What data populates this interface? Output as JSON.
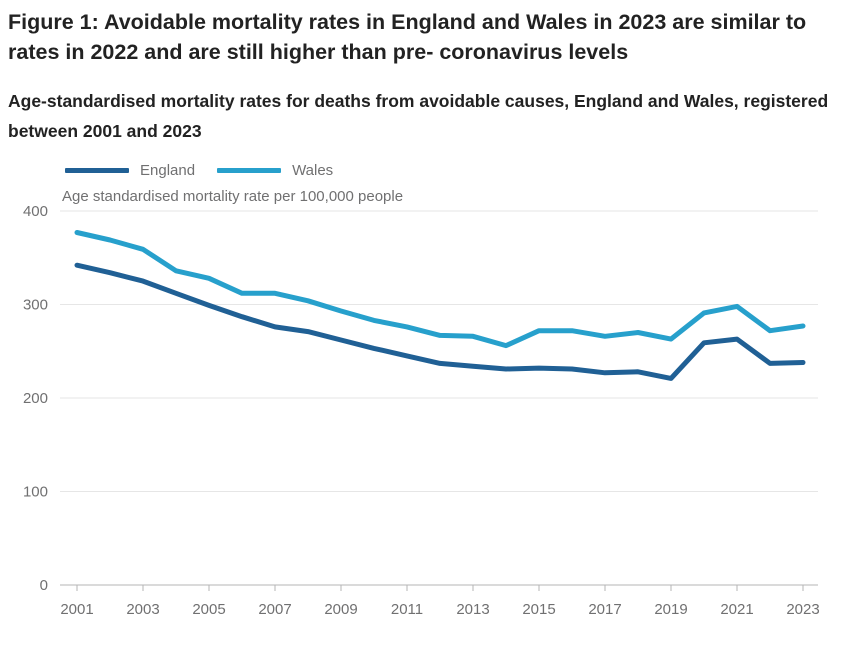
{
  "header": {
    "title": "Figure 1: Avoidable mortality rates in England and Wales in 2023 are similar to rates in 2022 and are still higher than pre- coronavirus levels",
    "subtitle": "Age-standardised mortality rates for deaths from avoidable causes, England and Wales, registered between 2001 and 2023"
  },
  "legend": {
    "items": [
      {
        "label": "England",
        "color": "#206095"
      },
      {
        "label": "Wales",
        "color": "#27a0cc"
      }
    ]
  },
  "chart_data": {
    "type": "line",
    "unit_label": "Age standardised mortality rate per 100,000 people",
    "xlabel": "",
    "ylabel": "Age standardised mortality rate per 100,000 people",
    "x": [
      2001,
      2002,
      2003,
      2004,
      2005,
      2006,
      2007,
      2008,
      2009,
      2010,
      2011,
      2012,
      2013,
      2014,
      2015,
      2016,
      2017,
      2018,
      2019,
      2020,
      2021,
      2022,
      2023
    ],
    "series": [
      {
        "name": "England",
        "color": "#206095",
        "values": [
          342,
          334,
          325,
          312,
          299,
          287,
          276,
          271,
          262,
          253,
          245,
          237,
          234,
          231,
          232,
          231,
          227,
          228,
          221,
          259,
          263,
          237,
          238
        ]
      },
      {
        "name": "Wales",
        "color": "#27a0cc",
        "values": [
          377,
          369,
          359,
          336,
          328,
          312,
          312,
          304,
          293,
          283,
          276,
          267,
          266,
          256,
          272,
          272,
          266,
          270,
          263,
          291,
          298,
          272,
          277
        ]
      }
    ],
    "ylim": [
      0,
      400
    ],
    "yticks": [
      0,
      100,
      200,
      300,
      400
    ],
    "xticks": [
      2001,
      2003,
      2005,
      2007,
      2009,
      2011,
      2013,
      2015,
      2017,
      2019,
      2021,
      2023
    ],
    "grid": "horizontal",
    "legend_position": "top-left"
  },
  "colors": {
    "title_text": "#222222",
    "axis_text": "#707071",
    "gridline": "#e6e6e6",
    "axis_line": "#b4b4b6",
    "background": "#ffffff"
  }
}
